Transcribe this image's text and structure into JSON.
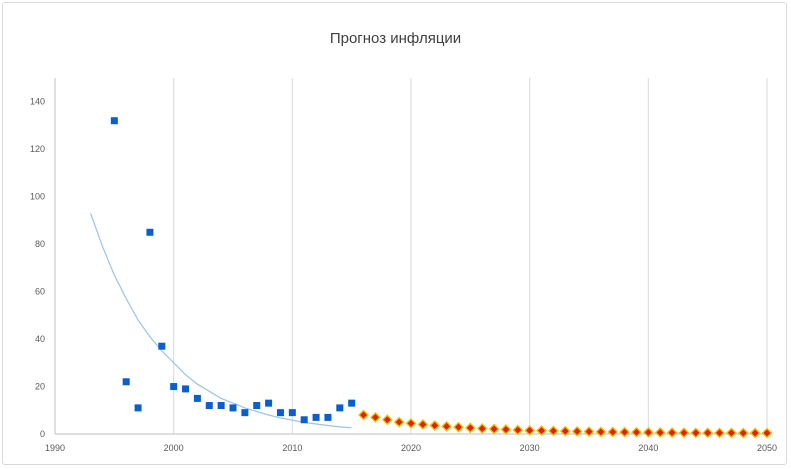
{
  "chart_data": {
    "type": "scatter",
    "title": "Прогноз инфляции",
    "xlabel": "",
    "ylabel": "",
    "xlim": [
      1990,
      2050
    ],
    "ylim": [
      0,
      150
    ],
    "xticks": [
      1990,
      2000,
      2010,
      2020,
      2030,
      2040,
      2050
    ],
    "yticks": [
      0,
      20,
      40,
      60,
      80,
      100,
      120,
      140
    ],
    "grid": "vertical",
    "legend": "none",
    "series": [
      {
        "color": "#0a5fd0",
        "marker": "square",
        "points": [
          [
            1995,
            132
          ],
          [
            1996,
            22
          ],
          [
            1997,
            11
          ],
          [
            1998,
            85
          ],
          [
            1999,
            37
          ],
          [
            2000,
            20
          ],
          [
            2001,
            19
          ],
          [
            2002,
            15
          ],
          [
            2003,
            12
          ],
          [
            2004,
            12
          ],
          [
            2005,
            11
          ],
          [
            2006,
            9
          ],
          [
            2007,
            12
          ],
          [
            2008,
            13
          ],
          [
            2009,
            9
          ],
          [
            2010,
            9
          ],
          [
            2011,
            6
          ],
          [
            2012,
            7
          ],
          [
            2013,
            7
          ],
          [
            2014,
            11
          ],
          [
            2015,
            13
          ]
        ]
      },
      {
        "color": "#e02020",
        "edge_color": "#f2c200",
        "marker": "diamond",
        "points": [
          [
            2016,
            8
          ],
          [
            2017,
            7
          ],
          [
            2018,
            6
          ],
          [
            2019,
            5
          ],
          [
            2020,
            4.5
          ],
          [
            2021,
            4
          ],
          [
            2022,
            3.6
          ],
          [
            2023,
            3.2
          ],
          [
            2024,
            2.9
          ],
          [
            2025,
            2.6
          ],
          [
            2026,
            2.3
          ],
          [
            2027,
            2.1
          ],
          [
            2028,
            1.9
          ],
          [
            2029,
            1.7
          ],
          [
            2030,
            1.5
          ],
          [
            2031,
            1.4
          ],
          [
            2032,
            1.3
          ],
          [
            2033,
            1.2
          ],
          [
            2034,
            1.1
          ],
          [
            2035,
            1.0
          ],
          [
            2036,
            0.9
          ],
          [
            2037,
            0.85
          ],
          [
            2038,
            0.8
          ],
          [
            2039,
            0.75
          ],
          [
            2040,
            0.7
          ],
          [
            2041,
            0.65
          ],
          [
            2042,
            0.6
          ],
          [
            2043,
            0.55
          ],
          [
            2044,
            0.5
          ],
          [
            2045,
            0.5
          ],
          [
            2046,
            0.45
          ],
          [
            2047,
            0.45
          ],
          [
            2048,
            0.4
          ],
          [
            2049,
            0.4
          ],
          [
            2050,
            0.4
          ]
        ]
      }
    ],
    "trendline": {
      "type": "exponential",
      "color": "#9dc3e6",
      "x_range": [
        1993,
        2015
      ],
      "points": [
        [
          1993,
          93
        ],
        [
          1994,
          79
        ],
        [
          1995,
          67
        ],
        [
          1996,
          57
        ],
        [
          1997,
          48
        ],
        [
          1998,
          41
        ],
        [
          1999,
          35
        ],
        [
          2000,
          30
        ],
        [
          2001,
          25
        ],
        [
          2002,
          21
        ],
        [
          2003,
          18
        ],
        [
          2004,
          15
        ],
        [
          2005,
          13
        ],
        [
          2006,
          11
        ],
        [
          2007,
          9.5
        ],
        [
          2008,
          8
        ],
        [
          2009,
          6.8
        ],
        [
          2010,
          5.8
        ],
        [
          2011,
          4.9
        ],
        [
          2012,
          4.2
        ],
        [
          2013,
          3.6
        ],
        [
          2014,
          3.0
        ],
        [
          2015,
          2.6
        ]
      ],
      "equation": "",
      "r_squared": ""
    }
  }
}
